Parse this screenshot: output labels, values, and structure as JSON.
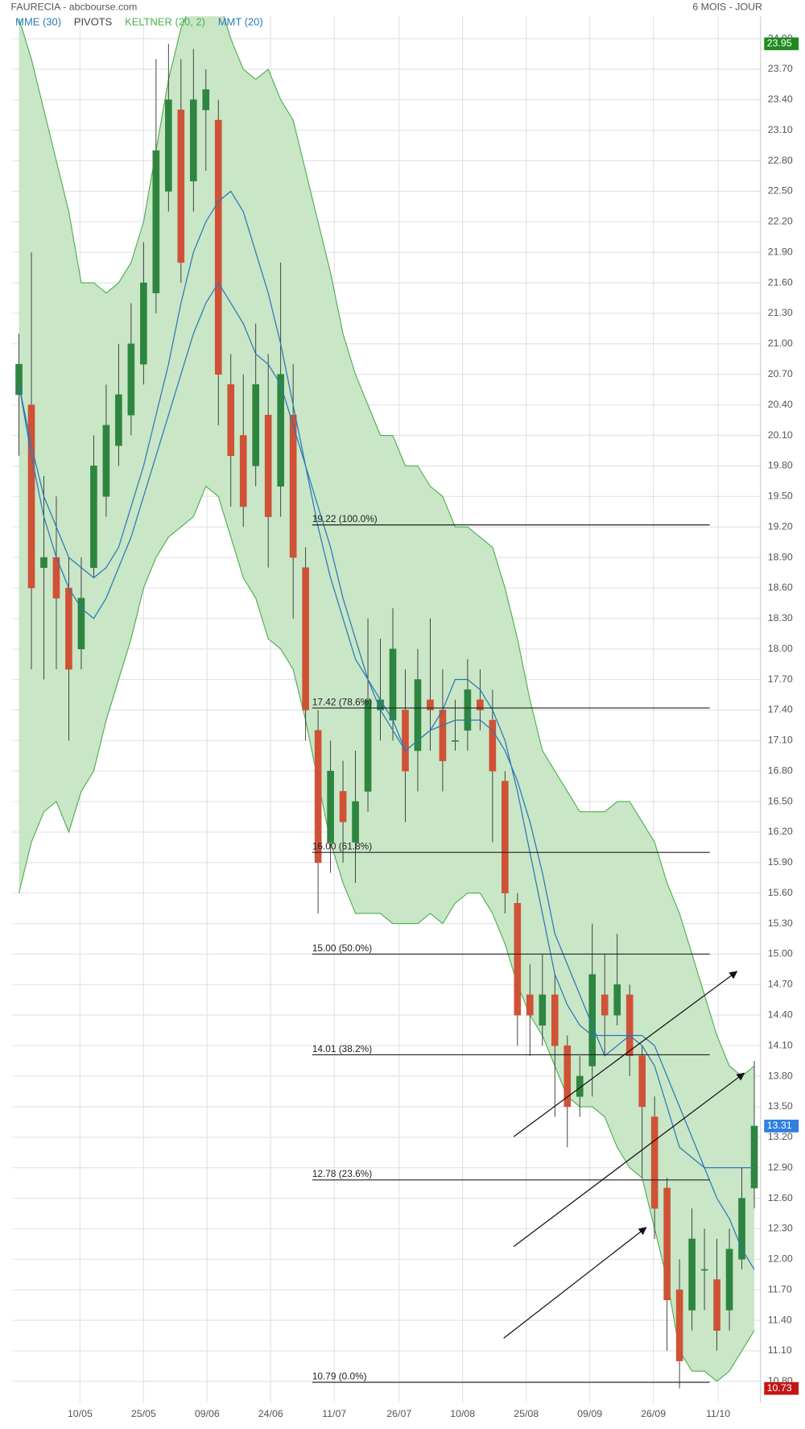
{
  "chart_data": {
    "type": "candlestick",
    "title": "FAURECIA - abcbourse.com",
    "subtitle": "6 MOIS - JOUR",
    "xlim": [
      -0.5,
      59.5
    ],
    "xticks": [
      {
        "value": 4.9,
        "label": "10/05"
      },
      {
        "value": 10.0,
        "label": "25/05"
      },
      {
        "value": 15.1,
        "label": "09/06"
      },
      {
        "value": 20.2,
        "label": "24/06"
      },
      {
        "value": 25.3,
        "label": "11/07"
      },
      {
        "value": 30.5,
        "label": "26/07"
      },
      {
        "value": 35.6,
        "label": "10/08"
      },
      {
        "value": 40.7,
        "label": "25/08"
      },
      {
        "value": 45.8,
        "label": "09/09"
      },
      {
        "value": 50.9,
        "label": "26/09"
      },
      {
        "value": 56.1,
        "label": "11/10"
      }
    ],
    "ylim": [
      10.59,
      24.22
    ],
    "yticks": [
      {
        "value": 10.8,
        "label": "10.80"
      },
      {
        "value": 11.1,
        "label": "11.10"
      },
      {
        "value": 11.4,
        "label": "11.40"
      },
      {
        "value": 11.7,
        "label": "11.70"
      },
      {
        "value": 12.0,
        "label": "12.00"
      },
      {
        "value": 12.3,
        "label": "12.30"
      },
      {
        "value": 12.6,
        "label": "12.60"
      },
      {
        "value": 12.9,
        "label": "12.90"
      },
      {
        "value": 13.2,
        "label": "13.20"
      },
      {
        "value": 13.5,
        "label": "13.50"
      },
      {
        "value": 13.8,
        "label": "13.80"
      },
      {
        "value": 14.1,
        "label": "14.10"
      },
      {
        "value": 14.4,
        "label": "14.40"
      },
      {
        "value": 14.7,
        "label": "14.70"
      },
      {
        "value": 15.0,
        "label": "15.00"
      },
      {
        "value": 15.3,
        "label": "15.30"
      },
      {
        "value": 15.6,
        "label": "15.60"
      },
      {
        "value": 15.9,
        "label": "15.90"
      },
      {
        "value": 16.2,
        "label": "16.20"
      },
      {
        "value": 16.5,
        "label": "16.50"
      },
      {
        "value": 16.8,
        "label": "16.80"
      },
      {
        "value": 17.1,
        "label": "17.10"
      },
      {
        "value": 17.4,
        "label": "17.40"
      },
      {
        "value": 17.7,
        "label": "17.70"
      },
      {
        "value": 18.0,
        "label": "18.00"
      },
      {
        "value": 18.3,
        "label": "18.30"
      },
      {
        "value": 18.6,
        "label": "18.60"
      },
      {
        "value": 18.9,
        "label": "18.90"
      },
      {
        "value": 19.2,
        "label": "19.20"
      },
      {
        "value": 19.5,
        "label": "19.50"
      },
      {
        "value": 19.8,
        "label": "19.80"
      },
      {
        "value": 20.1,
        "label": "20.10"
      },
      {
        "value": 20.4,
        "label": "20.40"
      },
      {
        "value": 20.7,
        "label": "20.70"
      },
      {
        "value": 21.0,
        "label": "21.00"
      },
      {
        "value": 21.3,
        "label": "21.30"
      },
      {
        "value": 21.6,
        "label": "21.60"
      },
      {
        "value": 21.9,
        "label": "21.90"
      },
      {
        "value": 22.2,
        "label": "22.20"
      },
      {
        "value": 22.5,
        "label": "22.50"
      },
      {
        "value": 22.8,
        "label": "22.80"
      },
      {
        "value": 23.1,
        "label": "23.10"
      },
      {
        "value": 23.4,
        "label": "23.40"
      },
      {
        "value": 23.7,
        "label": "23.70"
      },
      {
        "value": 24.0,
        "label": "24.00"
      }
    ],
    "grid": true,
    "ohlc": {
      "up_color": "#2e8540",
      "down_color": "#cf5236",
      "open": [
        20.5,
        20.4,
        18.8,
        18.9,
        18.6,
        18.0,
        18.8,
        19.5,
        20.0,
        20.3,
        20.8,
        21.5,
        22.5,
        23.3,
        22.6,
        23.3,
        23.2,
        20.6,
        20.1,
        19.8,
        20.3,
        19.6,
        20.3,
        18.8,
        17.2,
        16.1,
        16.6,
        16.1,
        16.6,
        17.4,
        17.3,
        17.4,
        17.0,
        17.5,
        17.4,
        17.1,
        17.2,
        17.5,
        17.3,
        16.7,
        15.5,
        14.6,
        14.3,
        14.6,
        14.1,
        13.6,
        13.9,
        14.6,
        14.4,
        14.6,
        14.0,
        13.4,
        12.7,
        11.7,
        11.5,
        11.9,
        11.8,
        11.5,
        12.0,
        12.7
      ],
      "high": [
        21.1,
        21.9,
        19.7,
        19.5,
        18.9,
        18.9,
        20.1,
        20.6,
        21.0,
        21.4,
        22.0,
        23.8,
        23.95,
        23.8,
        23.9,
        23.7,
        23.4,
        20.9,
        20.7,
        21.2,
        20.9,
        21.8,
        20.8,
        19.0,
        17.4,
        17.1,
        16.9,
        17.0,
        18.3,
        18.1,
        18.4,
        17.8,
        18.0,
        18.3,
        17.8,
        17.5,
        17.9,
        17.8,
        17.6,
        16.8,
        15.6,
        14.9,
        15.0,
        14.8,
        14.2,
        14.0,
        15.3,
        15.0,
        15.2,
        14.7,
        14.1,
        13.6,
        12.8,
        12.0,
        12.5,
        12.3,
        12.2,
        12.3,
        12.9,
        13.95
      ],
      "low": [
        19.9,
        17.8,
        17.7,
        17.8,
        17.1,
        17.8,
        18.7,
        19.3,
        19.8,
        20.1,
        20.6,
        21.3,
        22.3,
        21.6,
        22.3,
        22.7,
        20.2,
        19.4,
        19.2,
        19.6,
        18.8,
        19.3,
        18.3,
        17.1,
        15.4,
        15.8,
        15.9,
        15.7,
        16.4,
        17.1,
        17.1,
        16.3,
        16.6,
        17.0,
        16.6,
        17.0,
        17.0,
        17.2,
        16.1,
        15.4,
        14.1,
        14.0,
        14.1,
        13.4,
        13.1,
        13.4,
        13.6,
        14.0,
        14.3,
        13.8,
        12.8,
        12.2,
        11.1,
        10.73,
        11.3,
        11.5,
        11.1,
        11.3,
        11.9,
        12.5
      ],
      "close": [
        20.8,
        18.6,
        18.9,
        18.5,
        17.8,
        18.5,
        19.8,
        20.2,
        20.5,
        21.0,
        21.6,
        22.9,
        23.4,
        21.8,
        23.4,
        23.5,
        20.7,
        19.9,
        19.4,
        20.6,
        19.3,
        20.7,
        18.9,
        17.4,
        15.9,
        16.8,
        16.3,
        16.5,
        17.5,
        17.5,
        18.0,
        16.8,
        17.7,
        17.4,
        16.9,
        17.1,
        17.6,
        17.4,
        16.8,
        15.6,
        14.4,
        14.4,
        14.6,
        14.1,
        13.5,
        13.8,
        14.8,
        14.4,
        14.7,
        14.0,
        13.5,
        12.5,
        11.6,
        11.0,
        12.2,
        11.9,
        11.3,
        12.1,
        12.6,
        13.31
      ]
    },
    "series": [
      {
        "name": "MME (30)",
        "color": "#2a78b8",
        "values": [
          20.6,
          20.0,
          19.5,
          19.2,
          18.9,
          18.8,
          18.7,
          18.8,
          19.0,
          19.4,
          19.8,
          20.3,
          20.8,
          21.4,
          21.9,
          22.2,
          22.4,
          22.5,
          22.3,
          21.9,
          21.5,
          21.0,
          20.4,
          19.8,
          19.4,
          19.0,
          18.5,
          18.1,
          17.7,
          17.4,
          17.2,
          17.0,
          17.1,
          17.2,
          17.25,
          17.3,
          17.3,
          17.3,
          17.2,
          17.0,
          16.7,
          16.3,
          15.8,
          15.2,
          14.9,
          14.6,
          14.3,
          14.0,
          14.1,
          14.2,
          14.2,
          14.1,
          13.8,
          13.5,
          13.2,
          12.9,
          12.6,
          12.4,
          12.1,
          11.9
        ]
      },
      {
        "name": "KELTNER (20, 2)",
        "color": "#4caf50",
        "fill": "#c9e6c6",
        "upper": [
          24.2,
          23.8,
          23.3,
          22.8,
          22.3,
          21.6,
          21.6,
          21.5,
          21.6,
          21.8,
          22.2,
          22.9,
          23.6,
          24.1,
          24.4,
          24.5,
          24.4,
          24.0,
          23.7,
          23.6,
          23.7,
          23.4,
          23.2,
          22.7,
          22.2,
          21.7,
          21.1,
          20.7,
          20.4,
          20.1,
          20.1,
          19.8,
          19.8,
          19.6,
          19.5,
          19.2,
          19.2,
          19.1,
          19.0,
          18.6,
          18.1,
          17.5,
          17.0,
          16.8,
          16.6,
          16.4,
          16.4,
          16.4,
          16.5,
          16.5,
          16.3,
          16.1,
          15.7,
          15.4,
          15.0,
          14.6,
          14.2,
          13.9,
          13.8,
          13.9
        ],
        "lower": [
          15.6,
          16.1,
          16.4,
          16.5,
          16.2,
          16.6,
          16.8,
          17.3,
          17.7,
          18.1,
          18.6,
          18.9,
          19.1,
          19.2,
          19.3,
          19.6,
          19.5,
          19.1,
          18.7,
          18.5,
          18.1,
          18.0,
          17.8,
          17.3,
          16.7,
          16.1,
          15.7,
          15.4,
          15.4,
          15.4,
          15.3,
          15.3,
          15.3,
          15.4,
          15.3,
          15.5,
          15.6,
          15.6,
          15.4,
          15.1,
          14.7,
          14.4,
          14.2,
          13.9,
          13.6,
          13.5,
          13.5,
          13.4,
          13.1,
          12.9,
          12.8,
          12.3,
          11.8,
          11.1,
          10.9,
          10.9,
          10.8,
          10.9,
          11.1,
          11.3
        ]
      },
      {
        "name": "MMT (20)",
        "color": "#2a78b8",
        "values": [
          20.6,
          19.9,
          19.3,
          18.9,
          18.6,
          18.4,
          18.3,
          18.5,
          18.8,
          19.1,
          19.5,
          19.9,
          20.3,
          20.7,
          21.1,
          21.4,
          21.6,
          21.4,
          21.2,
          20.9,
          20.8,
          20.6,
          20.2,
          19.8,
          19.2,
          18.7,
          18.3,
          17.9,
          17.7,
          17.5,
          17.3,
          17.0,
          17.1,
          17.2,
          17.4,
          17.7,
          17.7,
          17.6,
          17.4,
          17.1,
          16.6,
          16.0,
          15.4,
          14.8,
          14.5,
          14.3,
          14.2,
          14.2,
          14.2,
          14.2,
          14.1,
          13.9,
          13.5,
          13.1,
          13.0,
          12.9,
          12.9,
          12.9,
          12.9,
          12.9
        ]
      }
    ],
    "pivots": {
      "name": "PIVOTS",
      "color": "#222222",
      "levels": [
        {
          "value": 19.22,
          "label": "19.22  (100.0%)"
        },
        {
          "value": 17.42,
          "label": "17.42  (78.6%)"
        },
        {
          "value": 16.0,
          "label": "16.00  (61.8%)"
        },
        {
          "value": 15.0,
          "label": "15.00  (50.0%)"
        },
        {
          "value": 14.01,
          "label": "14.01  (38.2%)"
        },
        {
          "value": 12.78,
          "label": "12.78  (23.6%)"
        },
        {
          "value": 10.79,
          "label": "10.79  (0.0%)"
        }
      ]
    },
    "price_tags": [
      {
        "value": 23.95,
        "color": "#1e8a1e"
      },
      {
        "value": 13.31,
        "color": "#2f7fe0"
      },
      {
        "value": 10.73,
        "color": "#c41616"
      }
    ]
  }
}
